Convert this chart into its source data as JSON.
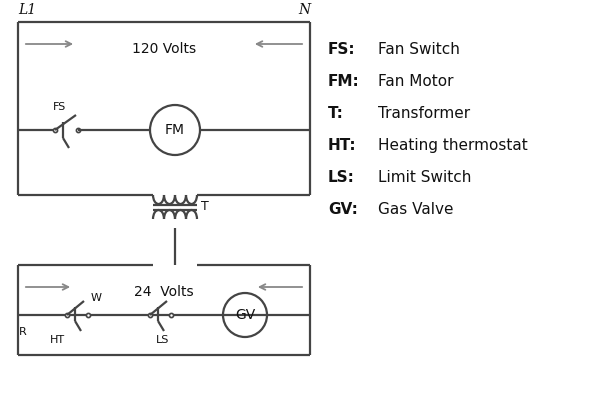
{
  "background_color": "#ffffff",
  "line_color": "#444444",
  "arrow_color": "#888888",
  "text_color": "#111111",
  "legend_items": [
    [
      "FS:",
      "Fan Switch"
    ],
    [
      "FM:",
      "Fan Motor"
    ],
    [
      "T:",
      "Transformer"
    ],
    [
      "HT:",
      "Heating thermostat"
    ],
    [
      "LS:",
      "Limit Switch"
    ],
    [
      "GV:",
      "Gas Valve"
    ]
  ],
  "label_L1": "L1",
  "label_N": "N",
  "label_120V": "120 Volts",
  "label_24V": "24  Volts",
  "label_T": "T",
  "label_FS": "FS",
  "label_FM": "FM",
  "label_GV": "GV",
  "label_R": "R",
  "label_W": "W",
  "label_HT": "HT",
  "label_LS": "LS"
}
